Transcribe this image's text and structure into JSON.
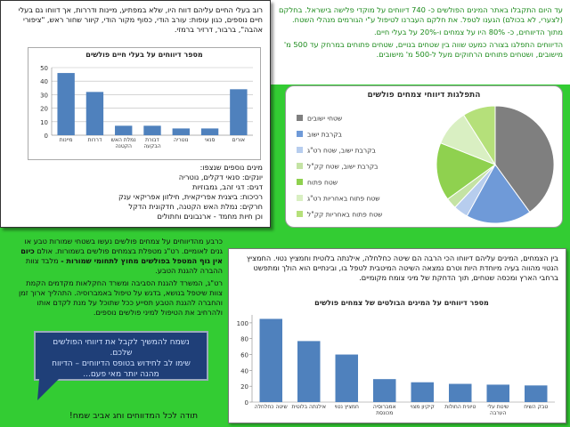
{
  "intro": {
    "paragraphs": [
      "עד היום התקבלו באתר המינים הפולשים כ- 740 דיווחים על מוקדי פלישה בישראל. בחלקם (לצערי, לא בכולם) הגענו לטפל. את חלקם העברנו לטיפול ע\"י הגורמים מנהלי השטח.",
      "מתוך הדיווחים, כ- 80% היו על צמחים ו-20% על בעלי חיים.",
      "הדיווחים התפלגו בצורה כמעט שווה בין שטחים בנויים, שטחים פתוחים במרחק עד 500 מ' מישובים, ושטחים פתוחים הרחוקים מעל ל-500 מ' מישובים."
    ]
  },
  "animals": {
    "text": "רוב בעלי החיים עליהם דווח היו, שלא במפתיע, מיינות ודררות, אך דווחו גם בעלי חיים נוספים, כגון עופות: עורב הודי, כסוף מקור הודי, קיוור שחור ראש, \"ציפורי אהבה\", ברבור, דרזיר ברמזי.",
    "chart": {
      "type": "bar",
      "title": "מספר דיווחים על בעלי חיים פולשים",
      "categories": [
        "מיינות",
        "דררות",
        "נמלת האש הקטנה",
        "דבורת הבקעה",
        "נוטריה",
        "סנאי",
        "אורים"
      ],
      "values": [
        46,
        32,
        7,
        7,
        5,
        5,
        34
      ],
      "color": "#4f81bd",
      "ylim": [
        0,
        50
      ],
      "yticks": [
        0,
        10,
        20,
        30,
        40,
        50
      ],
      "grid": true
    },
    "list": [
      "מינים נוספים שנצפו:",
      "יונקים: סנאי דקלים, נוטריה",
      "דגים: דגי זהב, גמבוזיות",
      "רכיכות: ביצנית אפריקאית, חילזון אפריקאי ענק",
      "חרקים: נמלת האש הקטנה, חדקונית הדקל",
      "וכן חיות מחמד - ארנבונים וחתולים"
    ]
  },
  "pie": {
    "type": "pie",
    "title": "התפלגות דיווחי צמחים פולשים",
    "categories": [
      "שטחי ישובים",
      "בקרבת ישוב",
      "בקרבת ישוב, שטח רט\"ג",
      "בקרבת ישוב, שטח קק\"ל",
      "שטח פתוח",
      "שטח פתוח באחריות רט\"ג",
      "שטח פתוח באחריות קק\"ל"
    ],
    "values": [
      40,
      18,
      4,
      3,
      16,
      10,
      9
    ],
    "colors": [
      "#7f7f7f",
      "#6f9ad8",
      "#b7cdee",
      "#c4e3a4",
      "#8fd14f",
      "#d9efc2",
      "#b5e07a"
    ]
  },
  "reserves": {
    "segments": [
      "כרבע מהדיווחים על צמחים פולשים נעשו בשטחי שמורות טבע או גנים לאומיים. רט\"ג מטפלת בצמחים פולשים בשמורות. אולם ",
      "כיום אין גוף המטפל בפולשים מחוץ לתחומי שמורות -",
      " מלבד צוות ההברה להגנת הטבע."
    ],
    "paragraph": "רט\"ג, המשרד להגנת הסביבה ומשרד החקלאות מקדמים הקמת צוות שיטפל בנושא, בדגש על טיפול באמברוסיה. התהליך ארוך זמן והחברה להגנת הטבע תסייע ככל שתוכל על מנת לקדם אותו ולהרחיב את הטיפול למיני פולשים נוספים."
  },
  "callout": {
    "lines": [
      "נשמח להמשיך לקבל את דיווחי הפולשים שלכם.",
      "שימו לב לחידוש בטופס הדיווחים – הדיווח מהנה יותר מאי פעם..."
    ]
  },
  "plants": {
    "text": "בין הצמחים, המינים עליהם דיווחו הכי הרבה הם שיטה כחלחלה, אילנתה בלוטית וחמציץ נטוי. החמציץ הנטוי מהווה בעיה מיוחדת היות וטרם נמצאה השיטה המיטבית לטפל בו, ובינתיים הוא הולך ומתפשט ברחבי הארץ ומכסה שטחים, תוך הדחקת של מיני צומח מקומיים.",
    "chart": {
      "type": "bar",
      "title": "מספר דיווחים על המינים הבולטים של צמחים פולשים",
      "categories": [
        "שיטה כחלחלה",
        "אילנתה בלוטית",
        "חמציץ נטוי",
        "אמברוסיה מכונסת",
        "קיקיון מצוי",
        "טיונית החולות",
        "שיטת עלי הערבה",
        "טבק השיח"
      ],
      "values": [
        105,
        77,
        60,
        29,
        25,
        23,
        22,
        21
      ],
      "color": "#4f81bd",
      "ylim": [
        0,
        110
      ],
      "yticks": [
        0,
        20,
        40,
        60,
        80,
        100
      ],
      "grid": false
    }
  },
  "footer": "תודה לכל המדווחים וחג אביב שמח!"
}
